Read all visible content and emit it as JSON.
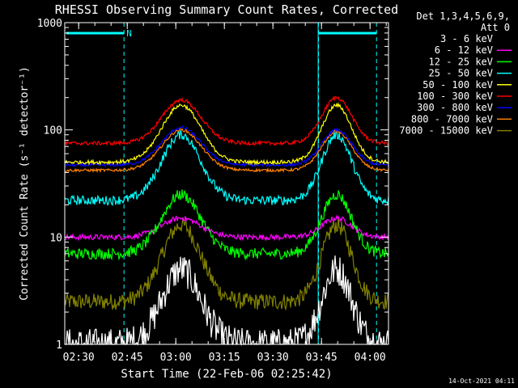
{
  "chart_data": {
    "type": "line",
    "title": "RHESSI Observing Summary Count Rates, Corrected",
    "xlabel": "Start Time (22-Feb-06 02:25:42)",
    "ylabel": "Corrected Count Rate (s⁻¹ detector⁻¹)",
    "y_scale": "log",
    "ylim": [
      1,
      1000
    ],
    "xlim_minutes_after_start": [
      0,
      100
    ],
    "x_tick_labels": [
      "02:30",
      "02:45",
      "03:00",
      "03:15",
      "03:30",
      "03:45",
      "04:00"
    ],
    "x_tick_minutes_after_start": [
      4.3,
      19.3,
      34.3,
      49.3,
      64.3,
      79.3,
      94.3
    ],
    "y_tick_labels": [
      "1",
      "10",
      "100",
      "1000"
    ],
    "y_tick_values": [
      1,
      10,
      100,
      1000
    ],
    "legend_header": [
      "Det 1,3,4,5,6,9,",
      "Att 0"
    ],
    "legend_placement": "right",
    "night_marker_label": "N",
    "footer_date": "14-Oct-2021 04:11",
    "series": [
      {
        "name": "3 - 6 keV",
        "color": "#ffffff",
        "legend_color": "#000000",
        "baseline": 1.0,
        "peak1": 5.0,
        "peak2": 5.0,
        "noise": 0.35
      },
      {
        "name": "6 - 12 keV",
        "color": "#ff00ff",
        "baseline": 10.0,
        "peak1": 15.0,
        "peak2": 15.0,
        "noise": 0.06
      },
      {
        "name": "12 - 25 keV",
        "color": "#00ff00",
        "baseline": 7.0,
        "peak1": 25.0,
        "peak2": 25.0,
        "noise": 0.12
      },
      {
        "name": "25 - 50 keV",
        "color": "#00ffff",
        "baseline": 22.0,
        "peak1": 90.0,
        "peak2": 90.0,
        "noise": 0.1
      },
      {
        "name": "50 - 100 keV",
        "color": "#ffff00",
        "baseline": 50.0,
        "peak1": 170.0,
        "peak2": 170.0,
        "noise": 0.04
      },
      {
        "name": "100 - 300 keV",
        "color": "#ff0000",
        "baseline": 75.0,
        "peak1": 190.0,
        "peak2": 200.0,
        "noise": 0.04
      },
      {
        "name": "300 - 800 keV",
        "color": "#0000ff",
        "baseline": 47.0,
        "peak1": 105.0,
        "peak2": 100.0,
        "noise": 0.03
      },
      {
        "name": "800 - 7000 keV",
        "color": "#ff8000",
        "baseline": 42.0,
        "peak1": 100.0,
        "peak2": 97.0,
        "noise": 0.03
      },
      {
        "name": "7000 - 15000 keV",
        "color": "#808000",
        "baseline": 2.5,
        "peak1": 13.0,
        "peak2": 13.0,
        "noise": 0.18
      }
    ]
  }
}
